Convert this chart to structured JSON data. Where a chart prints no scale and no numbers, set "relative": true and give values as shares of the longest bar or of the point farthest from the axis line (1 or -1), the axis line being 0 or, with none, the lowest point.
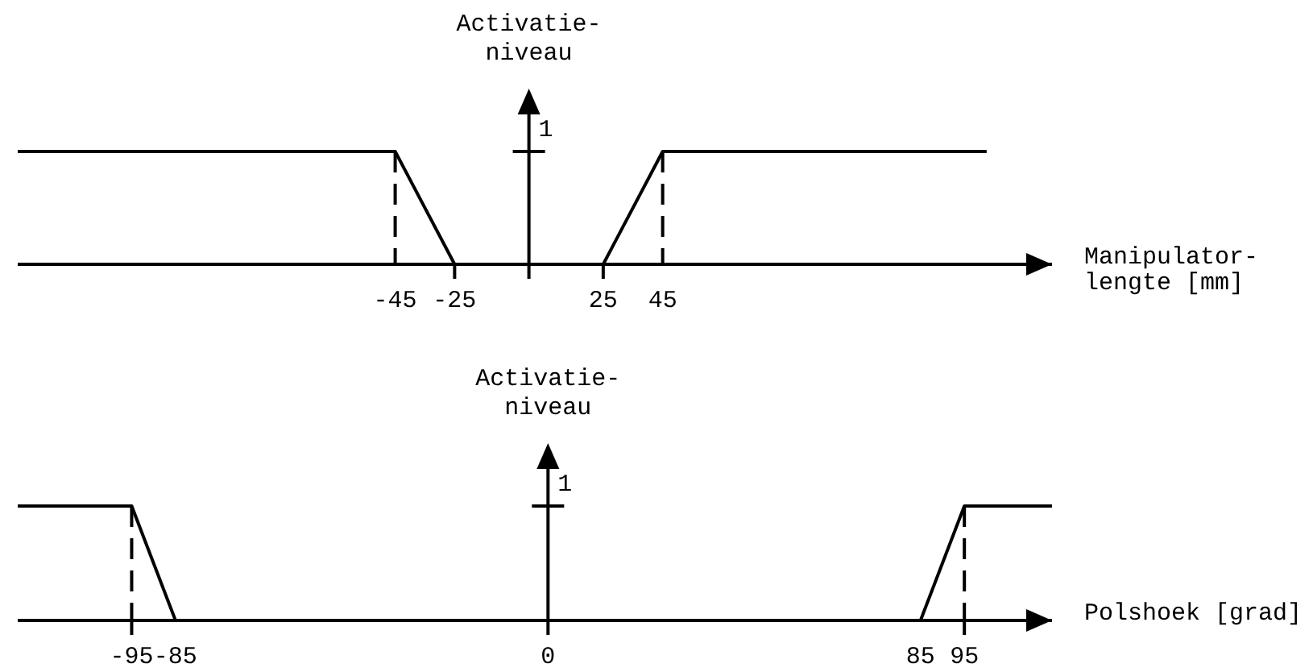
{
  "chart_data": [
    {
      "type": "line",
      "relative": true,
      "xlabel": "Manipulator-\nlengte [mm]",
      "ylabel": "Activatie-\nniveau",
      "xlim": [
        -172,
        176
      ],
      "xticks": [
        -45,
        -25,
        25,
        45
      ],
      "series": [
        {
          "color": "#000000",
          "x": [
            -172,
            -45,
            -25
          ],
          "values": [
            1,
            1,
            0
          ]
        },
        {
          "color": "#000000",
          "x": [
            25,
            45,
            154
          ],
          "values": [
            0,
            1,
            1
          ]
        }
      ],
      "ref_lines": [
        {
          "axis": "x",
          "value": -45,
          "line_style": "dashed"
        },
        {
          "axis": "x",
          "value": 45,
          "line_style": "dashed"
        }
      ],
      "annotations": [
        "1"
      ]
    },
    {
      "type": "line",
      "relative": true,
      "xlabel": "Polshoek [grad]",
      "ylabel": "Activatie-\nniveau",
      "xlim": [
        -121,
        115
      ],
      "xticks": [
        -95,
        -85,
        0,
        85,
        95
      ],
      "series": [
        {
          "color": "#000000",
          "x": [
            -121,
            -95,
            -85
          ],
          "values": [
            1,
            1,
            0
          ]
        },
        {
          "color": "#000000",
          "x": [
            85,
            95,
            115
          ],
          "values": [
            0,
            1,
            1
          ]
        }
      ],
      "ref_lines": [
        {
          "axis": "x",
          "value": -95,
          "line_style": "dashed"
        },
        {
          "axis": "x",
          "value": 95,
          "line_style": "dashed"
        }
      ],
      "annotations": [
        "1"
      ]
    }
  ]
}
